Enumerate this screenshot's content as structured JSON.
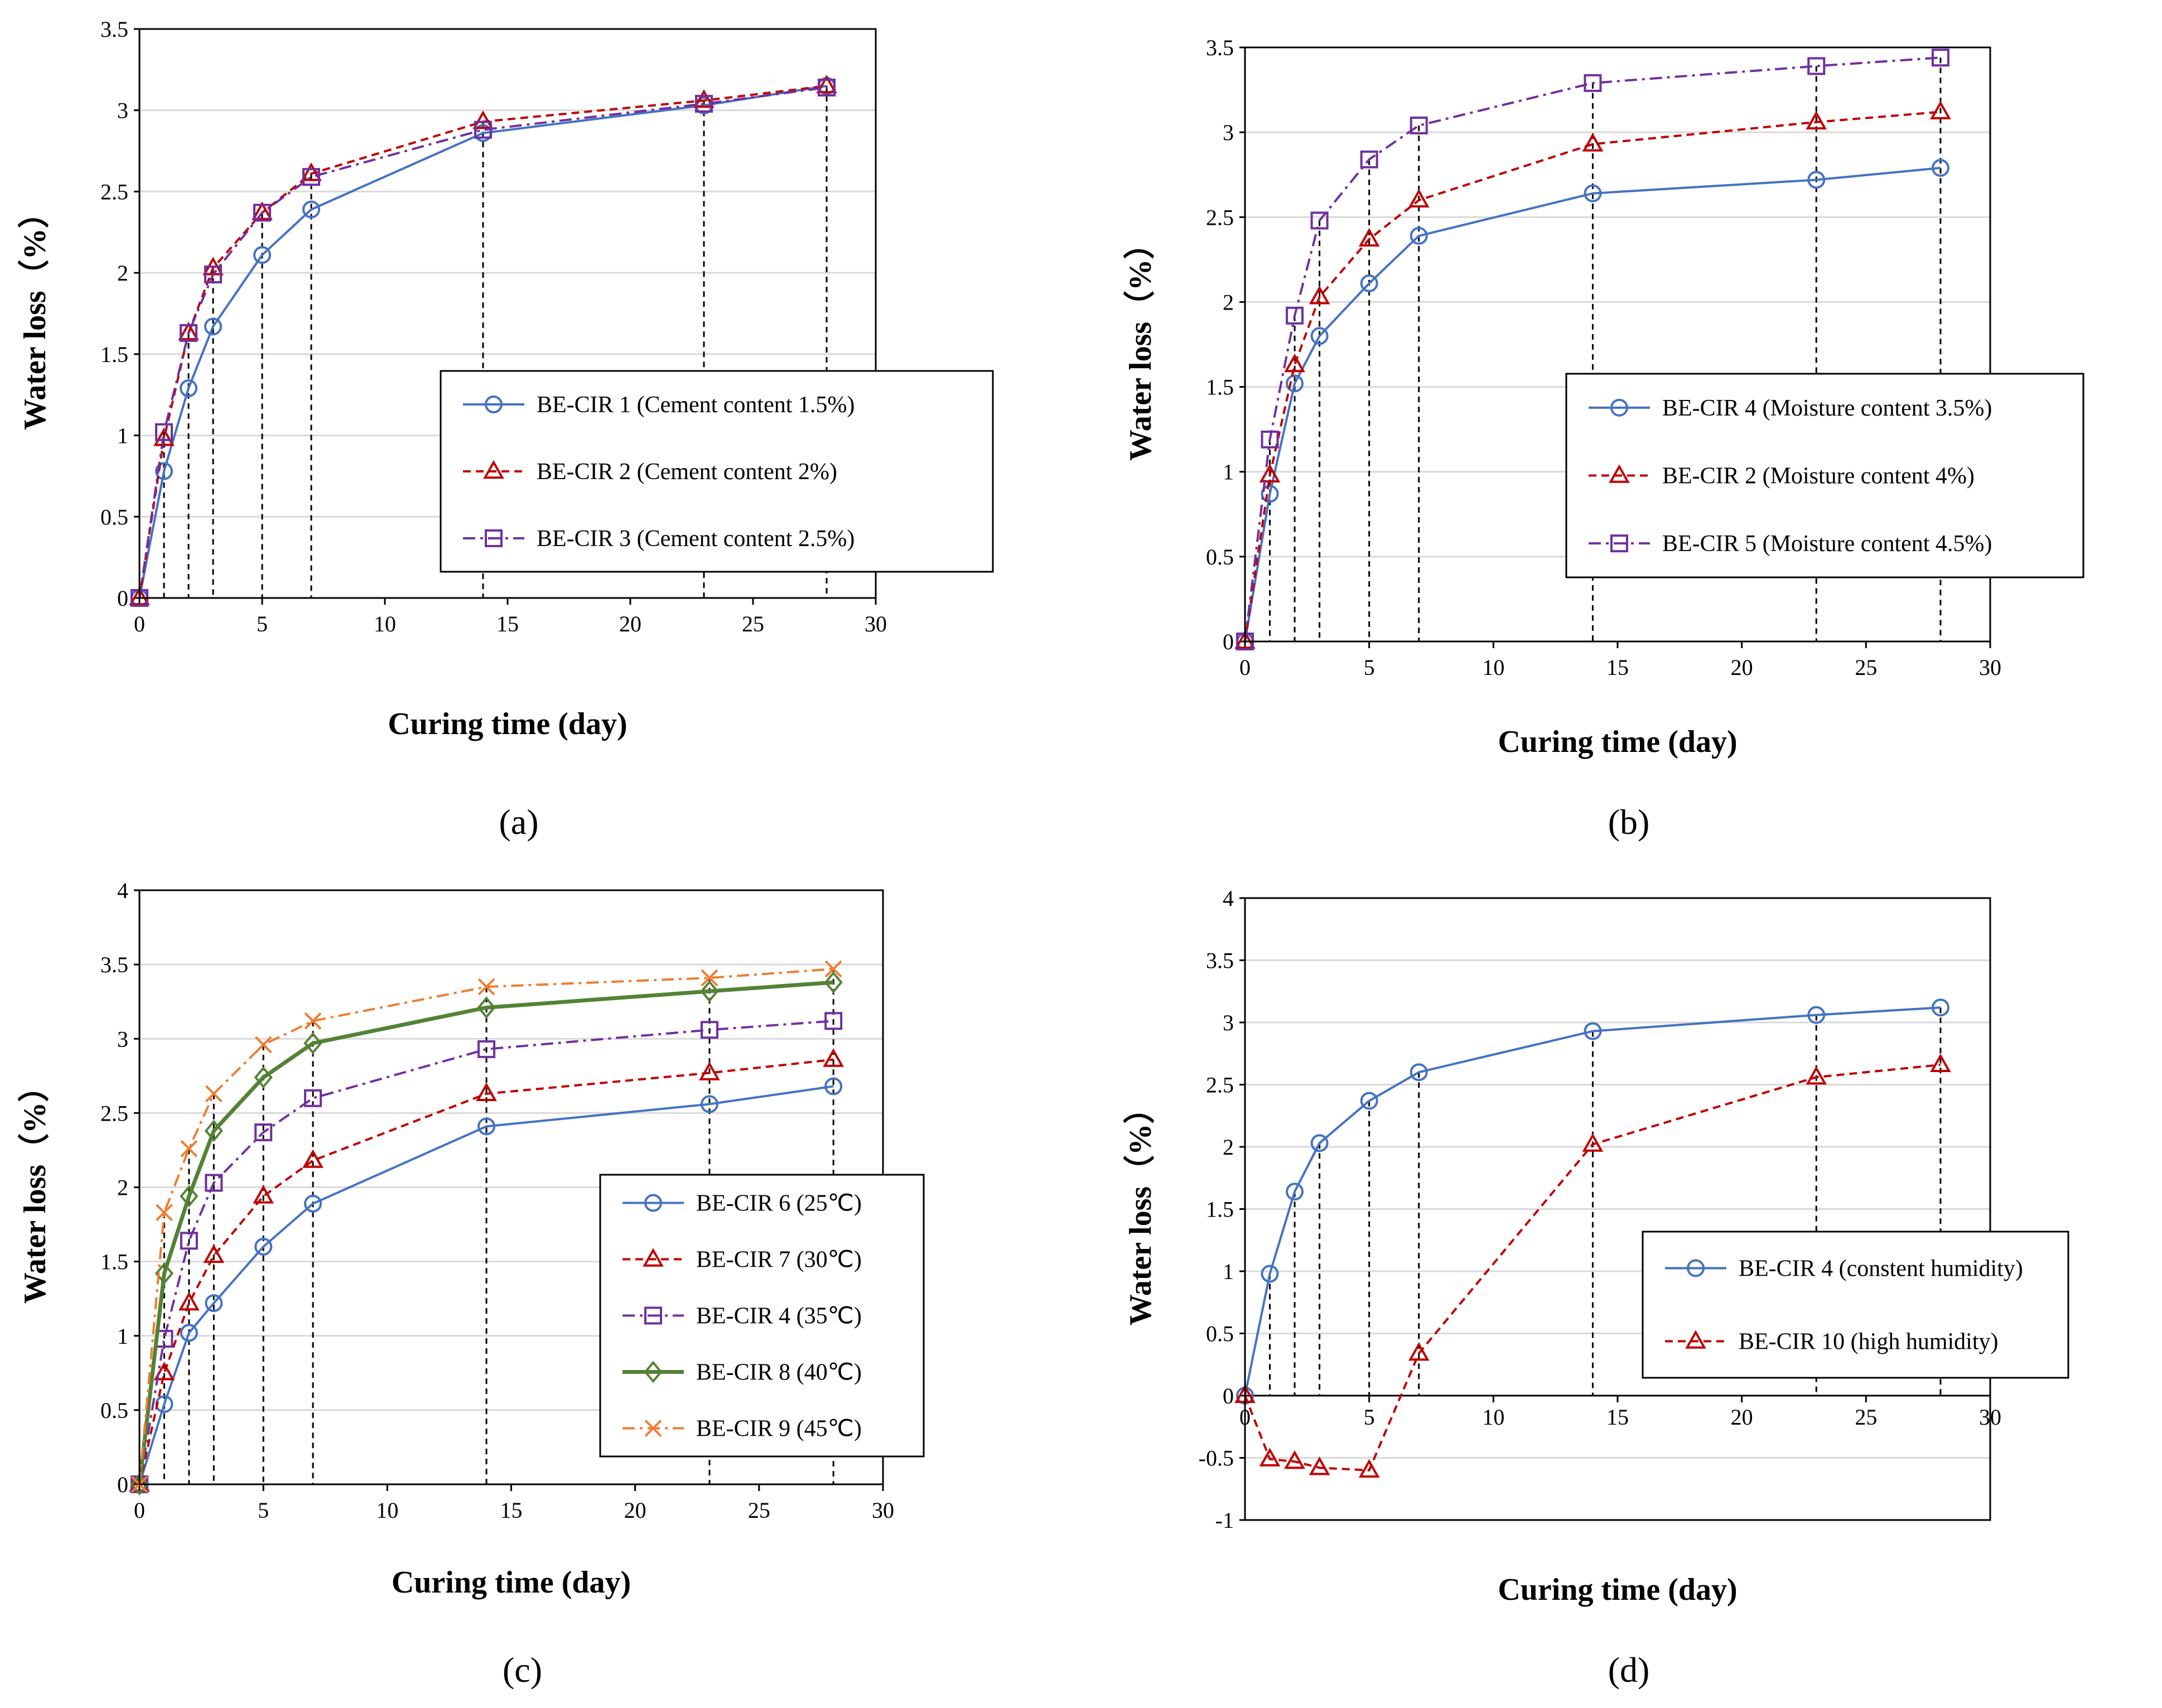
{
  "chart_data": [
    {
      "panel": "(a)",
      "type": "line",
      "xlabel": "Curing time (day)",
      "ylabel": "Water loss（%）",
      "xlim": [
        0,
        30
      ],
      "xticks": [
        0,
        5,
        10,
        15,
        20,
        25,
        30
      ],
      "ylim": [
        0,
        3.5
      ],
      "yticks": [
        0,
        0.5,
        1,
        1.5,
        2,
        2.5,
        3,
        3.5
      ],
      "legend_position": "center-right",
      "x": [
        0,
        1,
        2,
        3,
        5,
        7,
        14,
        23,
        28
      ],
      "drop_lines_at": [
        1,
        2,
        3,
        5,
        7,
        14,
        23,
        28
      ],
      "series": [
        {
          "name": "BE-CIR 1 (Cement content 1.5%)",
          "values": [
            0,
            0.78,
            1.29,
            1.67,
            2.11,
            2.39,
            2.86,
            3.03,
            3.15
          ],
          "color": "#4472c4",
          "dash": "solid",
          "marker": "circle"
        },
        {
          "name": "BE-CIR 2 (Cement content 2%)",
          "values": [
            0,
            0.98,
            1.63,
            2.03,
            2.37,
            2.61,
            2.93,
            3.06,
            3.15
          ],
          "color": "#c00000",
          "dash": "dash",
          "marker": "triangle"
        },
        {
          "name": "BE-CIR 3 (Cement content 2.5%)",
          "values": [
            0,
            1.02,
            1.63,
            1.99,
            2.37,
            2.59,
            2.88,
            3.04,
            3.14
          ],
          "color": "#7030a0",
          "dash": "dashdot",
          "marker": "square"
        }
      ]
    },
    {
      "panel": "(b)",
      "type": "line",
      "xlabel": "Curing time (day)",
      "ylabel": "Water loss（%）",
      "xlim": [
        0,
        30
      ],
      "xticks": [
        0,
        5,
        10,
        15,
        20,
        25,
        30
      ],
      "ylim": [
        0,
        3.5
      ],
      "yticks": [
        0,
        0.5,
        1,
        1.5,
        2,
        2.5,
        3,
        3.5
      ],
      "legend_position": "center-right",
      "x": [
        0,
        1,
        2,
        3,
        5,
        7,
        14,
        23,
        28
      ],
      "drop_lines_at": [
        1,
        2,
        3,
        5,
        7,
        14,
        23,
        28
      ],
      "series": [
        {
          "name": "BE-CIR 4 (Moisture content 3.5%)",
          "values": [
            0,
            0.87,
            1.52,
            1.8,
            2.11,
            2.39,
            2.64,
            2.72,
            2.79
          ],
          "color": "#4472c4",
          "dash": "solid",
          "marker": "circle"
        },
        {
          "name": "BE-CIR 2 (Moisture content 4%)",
          "values": [
            0,
            0.98,
            1.63,
            2.03,
            2.37,
            2.6,
            2.93,
            3.06,
            3.12
          ],
          "color": "#c00000",
          "dash": "dash",
          "marker": "triangle"
        },
        {
          "name": "BE-CIR 5 (Moisture content 4.5%)",
          "values": [
            0,
            1.19,
            1.92,
            2.48,
            2.84,
            3.04,
            3.29,
            3.39,
            3.44
          ],
          "color": "#7030a0",
          "dash": "dashdot",
          "marker": "square"
        }
      ]
    },
    {
      "panel": "(c)",
      "type": "line",
      "xlabel": "Curing time (day)",
      "ylabel": "Water loss（%）",
      "xlim": [
        0,
        30
      ],
      "xticks": [
        0,
        5,
        10,
        15,
        20,
        25,
        30
      ],
      "ylim": [
        0,
        4
      ],
      "yticks": [
        0,
        0.5,
        1,
        1.5,
        2,
        2.5,
        3,
        3.5,
        4
      ],
      "legend_position": "center-right",
      "x": [
        0,
        1,
        2,
        3,
        5,
        7,
        14,
        23,
        28
      ],
      "drop_lines_at": [
        1,
        2,
        3,
        5,
        7,
        14,
        23,
        28
      ],
      "series": [
        {
          "name": "BE-CIR 6 (25℃)",
          "values": [
            0,
            0.54,
            1.02,
            1.22,
            1.6,
            1.89,
            2.41,
            2.56,
            2.68
          ],
          "color": "#4472c4",
          "dash": "solid",
          "marker": "circle"
        },
        {
          "name": "BE-CIR 7 (30℃)",
          "values": [
            0,
            0.75,
            1.22,
            1.54,
            1.94,
            2.18,
            2.63,
            2.77,
            2.86
          ],
          "color": "#c00000",
          "dash": "dash",
          "marker": "triangle"
        },
        {
          "name": "BE-CIR 4 (35℃)",
          "values": [
            0,
            0.98,
            1.64,
            2.03,
            2.37,
            2.6,
            2.93,
            3.06,
            3.12
          ],
          "color": "#7030a0",
          "dash": "dashdot",
          "marker": "square"
        },
        {
          "name": "BE-CIR 8 (40℃)",
          "values": [
            0,
            1.42,
            1.94,
            2.38,
            2.74,
            2.97,
            3.21,
            3.32,
            3.38
          ],
          "color": "#548235",
          "dash": "solid",
          "marker": "diamond"
        },
        {
          "name": "BE-CIR 9 (45℃)",
          "values": [
            0,
            1.83,
            2.26,
            2.63,
            2.96,
            3.12,
            3.35,
            3.41,
            3.47
          ],
          "color": "#ed7d31",
          "dash": "dashdot",
          "marker": "x"
        }
      ]
    },
    {
      "panel": "(d)",
      "type": "line",
      "xlabel": "Curing time (day)",
      "ylabel": "Water loss（%）",
      "xlim": [
        0,
        30
      ],
      "xticks": [
        0,
        5,
        10,
        15,
        20,
        25,
        30
      ],
      "ylim": [
        -1,
        4
      ],
      "yticks": [
        -1,
        -0.5,
        0,
        0.5,
        1,
        1.5,
        2,
        2.5,
        3,
        3.5,
        4
      ],
      "legend_position": "center-right",
      "x": [
        0,
        1,
        2,
        3,
        5,
        7,
        14,
        23,
        28
      ],
      "drop_lines_at": [
        1,
        2,
        3,
        5,
        7,
        14,
        23,
        28
      ],
      "series": [
        {
          "name": "BE-CIR 4 (constent humidity)",
          "values": [
            0,
            0.98,
            1.64,
            2.03,
            2.37,
            2.6,
            2.93,
            3.06,
            3.12
          ],
          "color": "#4472c4",
          "dash": "solid",
          "marker": "circle"
        },
        {
          "name": "BE-CIR 10 (high humidity)",
          "values": [
            0,
            -0.51,
            -0.53,
            -0.58,
            -0.6,
            0.34,
            2.02,
            2.56,
            2.66
          ],
          "color": "#c00000",
          "dash": "dash",
          "marker": "triangle"
        }
      ]
    }
  ]
}
